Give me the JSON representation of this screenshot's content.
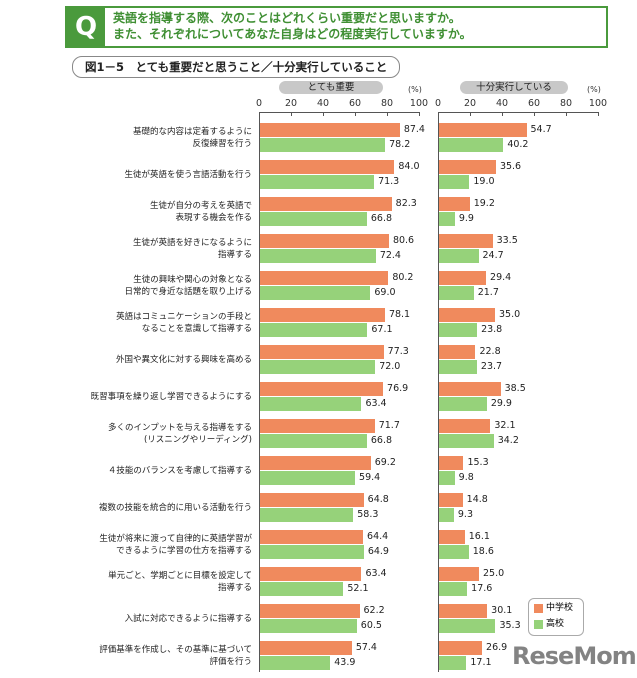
{
  "question": {
    "icon": "Q",
    "line1": "英語を指導する際、次のことはどれくらい重要だと思いますか。",
    "line2": "また、それぞれについてあなた自身はどの程度実行していますか。"
  },
  "chart_data": [
    {
      "type": "bar",
      "title": "図1－5　とても重要だと思うこと／十分実行していること",
      "panel": "とても重要",
      "unit": "(%)",
      "xlim": [
        0,
        100
      ],
      "ticks": [
        "0",
        "20",
        "40",
        "60",
        "80",
        "100"
      ],
      "categories": [
        "基礎的な内容は定着するように\n反復練習を行う",
        "生徒が英語を使う言語活動を行う",
        "生徒が自分の考えを英語で\n表現する機会を作る",
        "生徒が英語を好きになるように\n指導する",
        "生徒の興味や関心の対象となる\n日常的で身近な話題を取り上げる",
        "英語はコミュニケーションの手段と\nなることを意識して指導する",
        "外国や異文化に対する興味を高める",
        "既習事項を繰り返し学習できるようにする",
        "多くのインプットを与える指導をする\n(リスニングやリーディング)",
        "４技能のバランスを考慮して指導する",
        "複数の技能を統合的に用いる活動を行う",
        "生徒が将来に渡って自律的に英語学習が\nできるように学習の仕方を指導する",
        "単元ごと、学期ごとに目標を設定して\n指導する",
        "入試に対応できるように指導する",
        "評価基準を作成し、その基準に基づいて\n評価を行う"
      ],
      "series": [
        {
          "name": "中学校",
          "color": "#f08a5d",
          "values": [
            87.4,
            84.0,
            82.3,
            80.6,
            80.2,
            78.1,
            77.3,
            76.9,
            71.7,
            69.2,
            64.8,
            64.4,
            63.4,
            62.2,
            57.4
          ]
        },
        {
          "name": "高校",
          "color": "#96d27a",
          "values": [
            78.2,
            71.3,
            66.8,
            72.4,
            69.0,
            67.1,
            72.0,
            63.4,
            66.8,
            59.4,
            58.3,
            64.9,
            52.1,
            60.5,
            43.9
          ]
        }
      ]
    },
    {
      "type": "bar",
      "panel": "十分実行している",
      "unit": "(%)",
      "xlim": [
        0,
        100
      ],
      "ticks": [
        "0",
        "20",
        "40",
        "60",
        "80",
        "100"
      ],
      "series": [
        {
          "name": "中学校",
          "color": "#f08a5d",
          "values": [
            54.7,
            35.6,
            19.2,
            33.5,
            29.4,
            35.0,
            22.8,
            38.5,
            32.1,
            15.3,
            14.8,
            16.1,
            25.0,
            30.1,
            26.9
          ]
        },
        {
          "name": "高校",
          "color": "#96d27a",
          "values": [
            40.2,
            19.0,
            9.9,
            24.7,
            21.7,
            23.8,
            23.7,
            29.9,
            34.2,
            9.8,
            9.3,
            18.6,
            17.6,
            35.3,
            17.1
          ]
        }
      ]
    }
  ],
  "legend": {
    "items": [
      "中学校",
      "高校"
    ]
  },
  "watermark": "ReseMom"
}
